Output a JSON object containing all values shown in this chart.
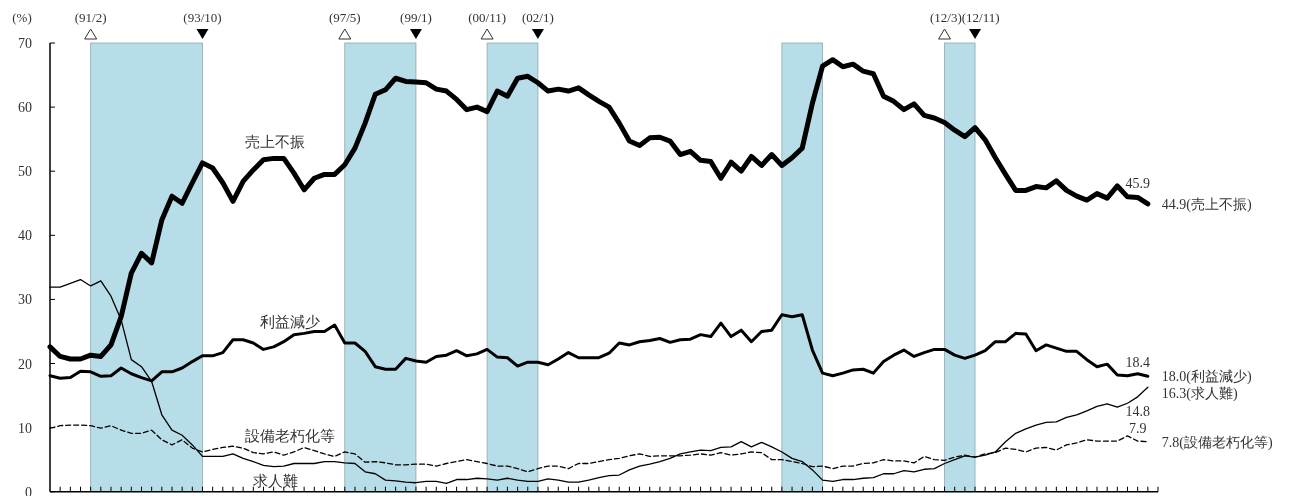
{
  "chart_data": {
    "type": "line",
    "ylabel": "(%)",
    "ylim": [
      0,
      70
    ],
    "yticks": [
      0,
      10,
      20,
      30,
      40,
      50,
      60,
      70
    ],
    "categories": [
      null,
      null,
      null,
      null,
      null,
      null,
      null,
      null,
      null,
      null,
      null,
      null,
      null,
      null,
      null,
      null,
      null,
      null,
      null,
      null,
      null,
      null,
      null,
      null,
      null,
      null,
      null,
      null,
      null,
      null,
      null,
      null,
      null,
      null,
      null,
      null,
      null,
      null,
      null,
      null,
      null,
      null,
      null,
      null,
      null,
      null,
      null,
      null,
      null,
      null,
      null,
      null,
      null,
      null,
      null,
      null,
      null,
      null,
      null,
      null,
      null,
      null,
      null,
      null,
      null,
      null,
      null,
      null,
      null,
      null,
      null,
      null,
      null,
      null,
      null,
      null,
      null,
      null,
      null,
      null,
      null,
      null,
      null,
      null,
      null,
      null,
      null,
      null,
      null,
      null,
      null,
      null,
      null,
      null,
      null,
      null,
      null,
      null,
      null,
      null,
      null,
      null,
      null,
      null,
      null,
      null,
      null,
      null,
      null
    ],
    "series": [
      {
        "name": "売上不振",
        "color": "#000000",
        "values": [
          22.6,
          21.1,
          20.7,
          20.7,
          21.3,
          21.1,
          22.9,
          27.3,
          34.1,
          37.2,
          35.7,
          42.4,
          46.1,
          45.0,
          48.2,
          51.3,
          50.5,
          48.2,
          45.3,
          48.4,
          50.2,
          51.8,
          52.0,
          52.0,
          49.7,
          47.1,
          48.9,
          49.5,
          49.5,
          51.0,
          53.6,
          57.5,
          62.0,
          62.7,
          64.5,
          64.0,
          63.9,
          63.8,
          62.8,
          62.5,
          61.2,
          59.6,
          60.0,
          59.3,
          62.5,
          61.7,
          64.5,
          64.8,
          63.8,
          62.5,
          62.8,
          62.5,
          63.0,
          61.9,
          60.9,
          60.0,
          57.5,
          54.7,
          54.0,
          55.2,
          55.3,
          54.7,
          52.6,
          53.1,
          51.7,
          51.5,
          48.9,
          51.4,
          50.0,
          52.3,
          50.9,
          52.6,
          50.9,
          52.1,
          53.6,
          60.6,
          66.4,
          67.4,
          66.3,
          66.7,
          65.6,
          65.2,
          61.7,
          60.9,
          59.6,
          60.5,
          58.7,
          58.3,
          57.6,
          56.4,
          55.4,
          56.8,
          54.9,
          52.1,
          49.5,
          47.0,
          47.0,
          47.6,
          47.4,
          48.5,
          47.0,
          46.1,
          45.5,
          46.5,
          45.8,
          47.7,
          46.0,
          45.9,
          44.9
        ],
        "value_labels": [
          null,
          null,
          null,
          null,
          null,
          null,
          null,
          null,
          null,
          null,
          null,
          null,
          null,
          null,
          null,
          null,
          null,
          null,
          null,
          null,
          null,
          null,
          null,
          null,
          null,
          null,
          null,
          null,
          null,
          null,
          null,
          null,
          null,
          null,
          null,
          null,
          null,
          null,
          null,
          null,
          null,
          null,
          null,
          null,
          null,
          null,
          null,
          null,
          null,
          null,
          null,
          null,
          null,
          null,
          null,
          null,
          null,
          null,
          null,
          null,
          null,
          null,
          null,
          null,
          null,
          null,
          null,
          null,
          null,
          null,
          null,
          null,
          null,
          null,
          null,
          null,
          null,
          null,
          null,
          null,
          null,
          null,
          null,
          null,
          null,
          null,
          null,
          null,
          null,
          null,
          null,
          null,
          null,
          null,
          null,
          null,
          null,
          null,
          null,
          null,
          null,
          null,
          null,
          null,
          null,
          null,
          null,
          "45.9",
          "44.9(売上不振)"
        ]
      },
      {
        "name": "利益減少",
        "color": "#000000",
        "values": [
          18.1,
          17.7,
          17.8,
          18.8,
          18.7,
          18.0,
          18.1,
          19.3,
          18.4,
          17.8,
          17.3,
          18.7,
          18.7,
          19.3,
          20.3,
          21.2,
          21.2,
          21.7,
          23.7,
          23.7,
          23.2,
          22.2,
          22.6,
          23.4,
          24.5,
          24.7,
          25.0,
          25.0,
          26.0,
          23.2,
          23.2,
          21.9,
          19.5,
          19.1,
          19.1,
          20.8,
          20.4,
          20.2,
          21.1,
          21.3,
          22.0,
          21.2,
          21.5,
          22.2,
          21.0,
          20.9,
          19.6,
          20.2,
          20.2,
          19.8,
          20.7,
          21.7,
          20.9,
          20.9,
          20.9,
          21.6,
          23.2,
          22.9,
          23.4,
          23.6,
          23.9,
          23.3,
          23.7,
          23.8,
          24.5,
          24.2,
          26.3,
          24.2,
          25.2,
          23.4,
          25.0,
          25.2,
          27.6,
          27.3,
          27.6,
          22.1,
          18.5,
          18.1,
          18.5,
          19.0,
          19.1,
          18.5,
          20.3,
          21.3,
          22.1,
          21.1,
          21.7,
          22.2,
          22.2,
          21.3,
          20.8,
          21.3,
          22.0,
          23.4,
          23.4,
          24.7,
          24.6,
          22.0,
          22.9,
          22.4,
          21.9,
          21.9,
          20.6,
          19.5,
          19.9,
          18.2,
          18.1,
          18.4,
          18.0
        ],
        "value_labels": [
          null,
          null,
          null,
          null,
          null,
          null,
          null,
          null,
          null,
          null,
          null,
          null,
          null,
          null,
          null,
          null,
          null,
          null,
          null,
          null,
          null,
          null,
          null,
          null,
          null,
          null,
          null,
          null,
          null,
          null,
          null,
          null,
          null,
          null,
          null,
          null,
          null,
          null,
          null,
          null,
          null,
          null,
          null,
          null,
          null,
          null,
          null,
          null,
          null,
          null,
          null,
          null,
          null,
          null,
          null,
          null,
          null,
          null,
          null,
          null,
          null,
          null,
          null,
          null,
          null,
          null,
          null,
          null,
          null,
          null,
          null,
          null,
          null,
          null,
          null,
          null,
          null,
          null,
          null,
          null,
          null,
          null,
          null,
          null,
          null,
          null,
          null,
          null,
          null,
          null,
          null,
          null,
          null,
          null,
          null,
          null,
          null,
          null,
          null,
          null,
          null,
          null,
          null,
          null,
          null,
          null,
          null,
          "18.4",
          "18.0(利益減少)"
        ]
      },
      {
        "name": "求人難",
        "color": "#000000",
        "values": [
          31.9,
          31.9,
          32.5,
          33.1,
          32.1,
          32.9,
          30.5,
          26.8,
          20.6,
          19.5,
          17.2,
          12.0,
          9.6,
          8.8,
          7.3,
          5.5,
          5.5,
          5.5,
          5.9,
          5.2,
          4.7,
          4.1,
          3.9,
          4.0,
          4.4,
          4.4,
          4.4,
          4.7,
          4.7,
          4.5,
          4.4,
          3.1,
          2.8,
          1.8,
          1.7,
          1.5,
          1.4,
          1.6,
          1.6,
          1.3,
          1.9,
          1.9,
          2.1,
          2.0,
          1.8,
          2.1,
          1.8,
          1.6,
          1.6,
          2.0,
          1.8,
          1.5,
          1.5,
          1.8,
          2.2,
          2.5,
          2.6,
          3.4,
          4.0,
          4.3,
          4.7,
          5.2,
          5.9,
          6.2,
          6.5,
          6.4,
          6.9,
          7.0,
          7.8,
          7.0,
          7.7,
          7.0,
          6.2,
          5.2,
          4.7,
          3.4,
          1.8,
          1.6,
          1.9,
          1.9,
          2.1,
          2.2,
          2.8,
          2.8,
          3.3,
          3.1,
          3.5,
          3.6,
          4.4,
          5.0,
          5.6,
          5.4,
          5.7,
          6.2,
          7.8,
          9.1,
          9.8,
          10.4,
          10.8,
          10.9,
          11.6,
          12.0,
          12.6,
          13.3,
          13.7,
          13.2,
          13.8,
          14.8,
          16.3
        ],
        "value_labels": [
          null,
          null,
          null,
          null,
          null,
          null,
          null,
          null,
          null,
          null,
          null,
          null,
          null,
          null,
          null,
          null,
          null,
          null,
          null,
          null,
          null,
          null,
          null,
          null,
          null,
          null,
          null,
          null,
          null,
          null,
          null,
          null,
          null,
          null,
          null,
          null,
          null,
          null,
          null,
          null,
          null,
          null,
          null,
          null,
          null,
          null,
          null,
          null,
          null,
          null,
          null,
          null,
          null,
          null,
          null,
          null,
          null,
          null,
          null,
          null,
          null,
          null,
          null,
          null,
          null,
          null,
          null,
          null,
          null,
          null,
          null,
          null,
          null,
          null,
          null,
          null,
          null,
          null,
          null,
          null,
          null,
          null,
          null,
          null,
          null,
          null,
          null,
          null,
          null,
          null,
          null,
          null,
          null,
          null,
          null,
          null,
          null,
          null,
          null,
          null,
          null,
          null,
          null,
          null,
          null,
          null,
          null,
          "14.8",
          "16.3(求人難)"
        ]
      },
      {
        "name": "設備老朽化等",
        "color": "#000000",
        "line_style": "dashed",
        "values": [
          9.9,
          10.3,
          10.4,
          10.4,
          10.3,
          9.9,
          10.3,
          9.6,
          9.1,
          9.1,
          9.6,
          8.1,
          7.3,
          8.1,
          6.8,
          6.2,
          6.6,
          6.9,
          7.1,
          6.8,
          6.1,
          5.9,
          6.2,
          5.7,
          6.2,
          6.9,
          6.4,
          5.9,
          5.5,
          6.2,
          5.9,
          4.6,
          4.7,
          4.5,
          4.2,
          4.2,
          4.3,
          4.3,
          4.0,
          4.4,
          4.7,
          5.0,
          4.7,
          4.4,
          4.0,
          4.0,
          3.6,
          3.1,
          3.6,
          4.0,
          4.0,
          3.6,
          4.4,
          4.4,
          4.7,
          5.0,
          5.2,
          5.6,
          5.9,
          5.5,
          5.6,
          5.6,
          5.6,
          5.7,
          5.9,
          5.7,
          6.1,
          5.7,
          5.9,
          6.2,
          6.1,
          5.0,
          5.0,
          4.7,
          4.4,
          3.9,
          4.0,
          3.6,
          4.0,
          4.0,
          4.4,
          4.5,
          5.0,
          4.8,
          4.8,
          4.5,
          5.5,
          5.0,
          4.9,
          5.4,
          5.7,
          5.4,
          5.9,
          6.1,
          6.8,
          6.6,
          6.2,
          6.8,
          6.9,
          6.5,
          7.3,
          7.6,
          8.1,
          7.9,
          7.9,
          7.9,
          8.7,
          7.9,
          7.8
        ],
        "value_labels": [
          null,
          null,
          null,
          null,
          null,
          null,
          null,
          null,
          null,
          null,
          null,
          null,
          null,
          null,
          null,
          null,
          null,
          null,
          null,
          null,
          null,
          null,
          null,
          null,
          null,
          null,
          null,
          null,
          null,
          null,
          null,
          null,
          null,
          null,
          null,
          null,
          null,
          null,
          null,
          null,
          null,
          null,
          null,
          null,
          null,
          null,
          null,
          null,
          null,
          null,
          null,
          null,
          null,
          null,
          null,
          null,
          null,
          null,
          null,
          null,
          null,
          null,
          null,
          null,
          null,
          null,
          null,
          null,
          null,
          null,
          null,
          null,
          null,
          null,
          null,
          null,
          null,
          null,
          null,
          null,
          null,
          null,
          null,
          null,
          null,
          null,
          null,
          null,
          null,
          null,
          null,
          null,
          null,
          null,
          null,
          null,
          null,
          null,
          null,
          null,
          null,
          null,
          null,
          null,
          null,
          null,
          null,
          "7.9",
          "7.8(設備老朽化等)"
        ]
      }
    ],
    "annotations": [
      "(91/2)",
      "(93/10)",
      "(97/5)",
      "(99/1)",
      "(00/11)",
      "(02/1)",
      "(12/3)",
      "(12/11)"
    ]
  }
}
